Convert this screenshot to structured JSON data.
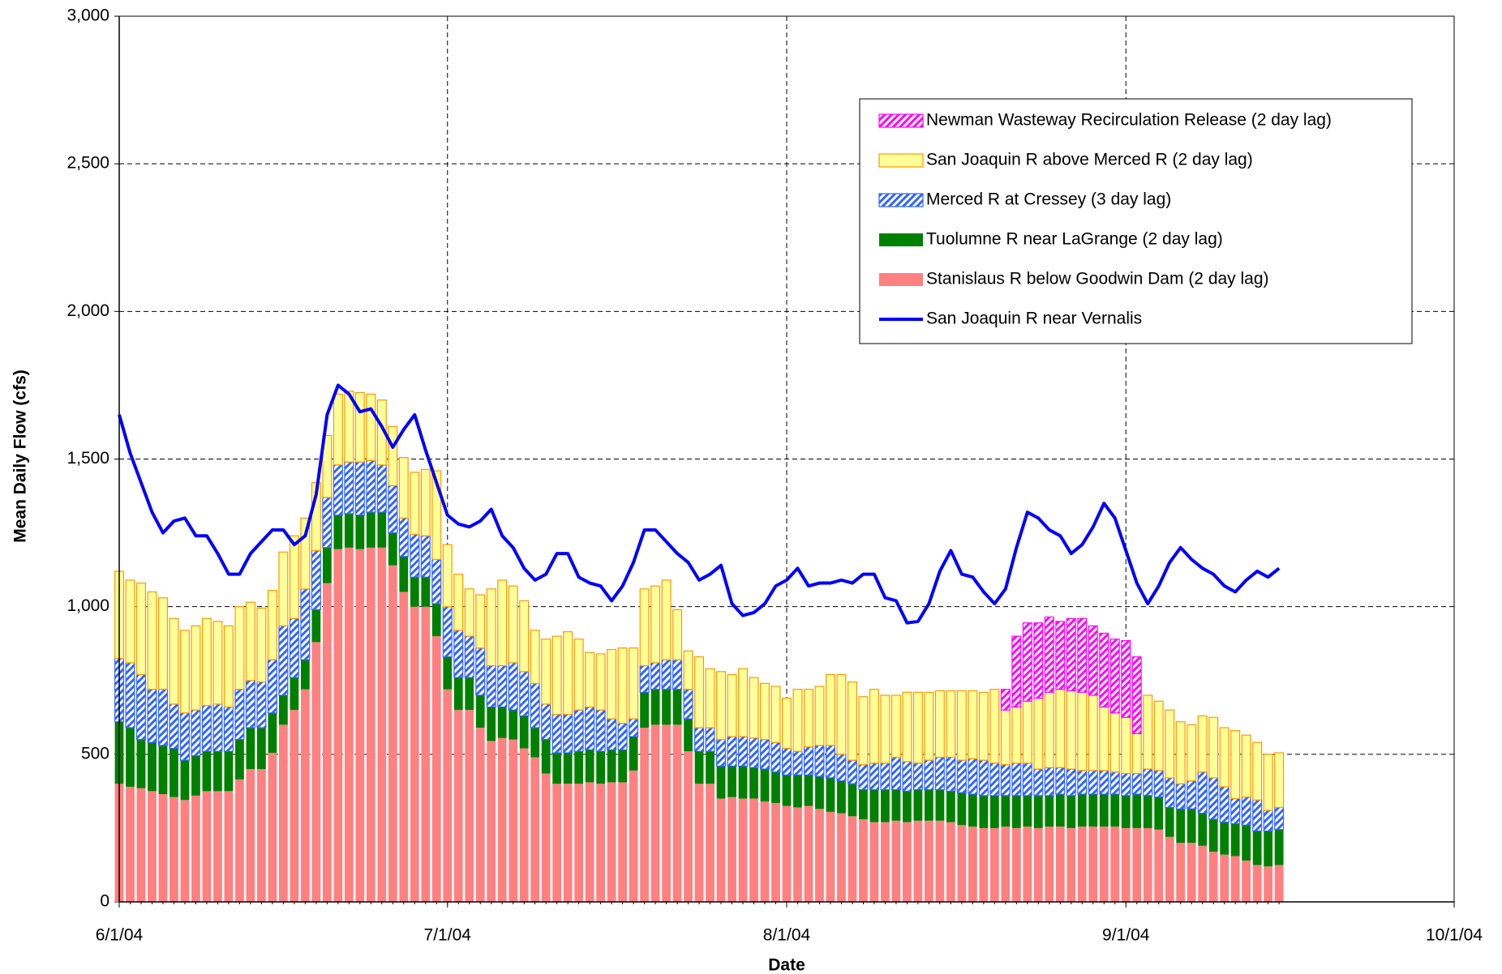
{
  "chart_data": {
    "type": "bar",
    "x_label": "Date",
    "y_label": "Mean Daily Flow (cfs)",
    "x": [
      "6/1/04",
      "6/2/04",
      "6/3/04",
      "6/4/04",
      "6/5/04",
      "6/6/04",
      "6/7/04",
      "6/8/04",
      "6/9/04",
      "6/10/04",
      "6/11/04",
      "6/12/04",
      "6/13/04",
      "6/14/04",
      "6/15/04",
      "6/16/04",
      "6/17/04",
      "6/18/04",
      "6/19/04",
      "6/20/04",
      "6/21/04",
      "6/22/04",
      "6/23/04",
      "6/24/04",
      "6/25/04",
      "6/26/04",
      "6/27/04",
      "6/28/04",
      "6/29/04",
      "6/30/04",
      "7/1/04",
      "7/2/04",
      "7/3/04",
      "7/4/04",
      "7/5/04",
      "7/6/04",
      "7/7/04",
      "7/8/04",
      "7/9/04",
      "7/10/04",
      "7/11/04",
      "7/12/04",
      "7/13/04",
      "7/14/04",
      "7/15/04",
      "7/16/04",
      "7/17/04",
      "7/18/04",
      "7/19/04",
      "7/20/04",
      "7/21/04",
      "7/22/04",
      "7/23/04",
      "7/24/04",
      "7/25/04",
      "7/26/04",
      "7/27/04",
      "7/28/04",
      "7/29/04",
      "7/30/04",
      "7/31/04",
      "8/1/04",
      "8/2/04",
      "8/3/04",
      "8/4/04",
      "8/5/04",
      "8/6/04",
      "8/7/04",
      "8/8/04",
      "8/9/04",
      "8/10/04",
      "8/11/04",
      "8/12/04",
      "8/13/04",
      "8/14/04",
      "8/15/04",
      "8/16/04",
      "8/17/04",
      "8/18/04",
      "8/19/04",
      "8/20/04",
      "8/21/04",
      "8/22/04",
      "8/23/04",
      "8/24/04",
      "8/25/04",
      "8/26/04",
      "8/27/04",
      "8/28/04",
      "8/29/04",
      "8/30/04",
      "8/31/04",
      "9/1/04",
      "9/2/04",
      "9/3/04",
      "9/4/04",
      "9/5/04",
      "9/6/04",
      "9/7/04",
      "9/8/04",
      "9/9/04",
      "9/10/04",
      "9/11/04",
      "9/12/04",
      "9/13/04",
      "9/14/04",
      "9/15/04"
    ],
    "xlim": [
      "6/1/04",
      "10/1/04"
    ],
    "xticks": [
      "6/1/04",
      "7/1/04",
      "8/1/04",
      "9/1/04",
      "10/1/04"
    ],
    "ylim": [
      0,
      3000
    ],
    "yticks": [
      0,
      500,
      {
        "value": 1000,
        "label": "1,000"
      },
      {
        "value": 1500,
        "label": "1,500"
      },
      {
        "value": 2000,
        "label": "2,000"
      },
      {
        "value": 2500,
        "label": "2,500"
      },
      {
        "value": 3000,
        "label": "3,000"
      }
    ],
    "grid": true,
    "series": [
      {
        "name": "Stanislaus R below Goodwin Dam (2 day lag)",
        "type": "bar",
        "color": "#ff8080",
        "values": [
          400,
          390,
          385,
          375,
          365,
          355,
          345,
          360,
          375,
          375,
          375,
          415,
          450,
          450,
          505,
          600,
          650,
          720,
          880,
          1080,
          1195,
          1200,
          1195,
          1200,
          1200,
          1140,
          1050,
          1000,
          1000,
          900,
          720,
          650,
          650,
          590,
          545,
          555,
          550,
          520,
          490,
          435,
          400,
          400,
          400,
          405,
          400,
          405,
          405,
          445,
          590,
          600,
          600,
          600,
          510,
          400,
          400,
          350,
          355,
          350,
          350,
          340,
          335,
          325,
          320,
          325,
          315,
          305,
          300,
          290,
          280,
          270,
          270,
          275,
          270,
          275,
          275,
          275,
          270,
          260,
          255,
          250,
          250,
          255,
          250,
          255,
          250,
          255,
          255,
          250,
          255,
          255,
          255,
          255,
          250,
          250,
          250,
          245,
          220,
          200,
          200,
          190,
          170,
          160,
          155,
          140,
          125,
          120,
          125
        ]
      },
      {
        "name": "Tuolumne R near LaGrange (2 day lag)",
        "type": "bar",
        "color": "#008000",
        "values": [
          210,
          200,
          165,
          165,
          165,
          165,
          135,
          135,
          135,
          135,
          135,
          135,
          140,
          140,
          135,
          100,
          110,
          100,
          110,
          120,
          115,
          115,
          115,
          120,
          120,
          110,
          120,
          100,
          100,
          110,
          110,
          110,
          110,
          110,
          115,
          105,
          100,
          110,
          100,
          115,
          105,
          105,
          110,
          110,
          110,
          110,
          110,
          115,
          120,
          120,
          120,
          120,
          110,
          110,
          110,
          110,
          105,
          110,
          105,
          110,
          105,
          105,
          110,
          105,
          110,
          115,
          110,
          110,
          100,
          110,
          110,
          105,
          105,
          105,
          105,
          105,
          105,
          110,
          110,
          110,
          110,
          105,
          110,
          105,
          110,
          105,
          110,
          110,
          110,
          110,
          110,
          110,
          110,
          115,
          110,
          110,
          100,
          115,
          115,
          110,
          110,
          110,
          110,
          120,
          115,
          120,
          120
        ]
      },
      {
        "name": "Merced R at Cressey (3 day lag)",
        "type": "bar",
        "color": "#3366ff",
        "hatch": true,
        "values": [
          215,
          220,
          220,
          180,
          190,
          150,
          160,
          155,
          155,
          160,
          150,
          170,
          160,
          155,
          180,
          235,
          200,
          240,
          200,
          170,
          170,
          175,
          180,
          175,
          160,
          160,
          130,
          145,
          140,
          150,
          170,
          160,
          140,
          160,
          140,
          140,
          160,
          150,
          150,
          120,
          130,
          130,
          140,
          145,
          140,
          105,
          90,
          60,
          90,
          90,
          100,
          100,
          100,
          80,
          80,
          90,
          100,
          100,
          100,
          100,
          100,
          90,
          80,
          95,
          105,
          110,
          90,
          80,
          85,
          90,
          90,
          110,
          100,
          90,
          100,
          110,
          115,
          110,
          120,
          120,
          110,
          105,
          110,
          110,
          90,
          95,
          90,
          90,
          80,
          80,
          80,
          75,
          75,
          70,
          90,
          90,
          100,
          85,
          95,
          140,
          140,
          120,
          85,
          95,
          105,
          70,
          75
        ]
      },
      {
        "name": "San Joaquin R above Merced R (2 day lag)",
        "type": "bar",
        "color": "#ffff99",
        "edgecolor": "#ff9900",
        "values": [
          295,
          280,
          310,
          330,
          310,
          290,
          280,
          285,
          295,
          280,
          275,
          280,
          265,
          250,
          235,
          250,
          280,
          240,
          230,
          210,
          240,
          240,
          235,
          225,
          220,
          200,
          205,
          210,
          225,
          300,
          210,
          190,
          160,
          180,
          260,
          290,
          260,
          240,
          180,
          220,
          265,
          280,
          240,
          185,
          190,
          235,
          255,
          240,
          260,
          260,
          270,
          170,
          130,
          240,
          200,
          230,
          210,
          230,
          205,
          190,
          190,
          170,
          210,
          195,
          200,
          240,
          270,
          265,
          230,
          250,
          230,
          210,
          235,
          240,
          230,
          225,
          225,
          235,
          230,
          230,
          250,
          185,
          190,
          210,
          240,
          255,
          265,
          265,
          265,
          255,
          215,
          200,
          190,
          135,
          250,
          235,
          230,
          210,
          190,
          190,
          205,
          200,
          230,
          210,
          195,
          190,
          185
        ]
      },
      {
        "name": "Newman Wasteway Recirculation Release (2 day lag)",
        "type": "bar",
        "color": "#ff00ff",
        "hatch": true,
        "values": [
          null,
          null,
          null,
          null,
          null,
          null,
          null,
          null,
          null,
          null,
          null,
          null,
          null,
          null,
          null,
          null,
          null,
          null,
          null,
          null,
          null,
          null,
          null,
          null,
          null,
          null,
          null,
          null,
          null,
          null,
          null,
          null,
          null,
          null,
          null,
          null,
          null,
          null,
          null,
          null,
          null,
          null,
          null,
          null,
          null,
          null,
          null,
          null,
          null,
          null,
          null,
          null,
          null,
          null,
          null,
          null,
          null,
          null,
          null,
          null,
          null,
          null,
          null,
          null,
          null,
          null,
          null,
          null,
          null,
          null,
          null,
          null,
          null,
          null,
          null,
          null,
          null,
          null,
          null,
          null,
          null,
          70,
          240,
          265,
          255,
          255,
          230,
          245,
          250,
          235,
          250,
          250,
          260,
          260,
          null,
          null,
          null,
          null,
          null,
          null,
          null,
          null,
          null,
          null,
          null,
          null,
          null
        ]
      },
      {
        "name": "San Joaquin R near Vernalis",
        "type": "line",
        "color": "#0000ff",
        "values": [
          1650,
          1520,
          1420,
          1320,
          1250,
          1290,
          1300,
          1240,
          1240,
          1180,
          1110,
          1110,
          1180,
          1220,
          1260,
          1260,
          1210,
          1240,
          1380,
          1650,
          1750,
          1720,
          1660,
          1670,
          1610,
          1540,
          1600,
          1650,
          1530,
          1420,
          1310,
          1280,
          1270,
          1290,
          1330,
          1240,
          1200,
          1130,
          1090,
          1110,
          1180,
          1180,
          1100,
          1080,
          1070,
          1020,
          1070,
          1150,
          1260,
          1260,
          1220,
          1180,
          1150,
          1090,
          1110,
          1140,
          1010,
          970,
          980,
          1010,
          1070,
          1090,
          1130,
          1070,
          1080,
          1080,
          1090,
          1080,
          1110,
          1110,
          1030,
          1020,
          945,
          950,
          1010,
          1120,
          1190,
          1110,
          1100,
          1050,
          1010,
          1060,
          1200,
          1320,
          1300,
          1260,
          1240,
          1180,
          1210,
          1270,
          1350,
          1300,
          1190,
          1080,
          1010,
          1070,
          1150,
          1200,
          1160,
          1130,
          1110,
          1070,
          1050,
          1090,
          1120,
          1100,
          1130
        ]
      }
    ]
  }
}
